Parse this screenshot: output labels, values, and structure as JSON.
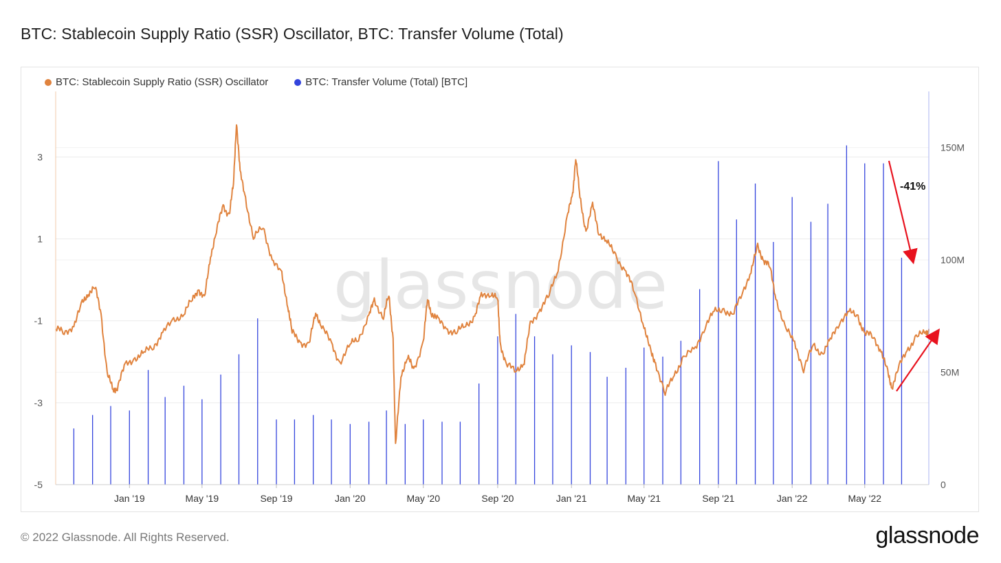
{
  "title": "BTC: Stablecoin Supply Ratio (SSR) Oscillator, BTC: Transfer Volume (Total)",
  "legend": {
    "series1": "BTC: Stablecoin Supply Ratio (SSR) Oscillator",
    "series2": "BTC: Transfer Volume (Total) [BTC]"
  },
  "footer": "© 2022 Glassnode. All Rights Reserved.",
  "logo": "glassnode",
  "watermark": "glassnode",
  "colors": {
    "ssr": "#e0833e",
    "volume": "#3344dd",
    "arrow": "#e8121e",
    "grid": "#ececec"
  },
  "chart_data": {
    "type": "line+bar",
    "x_ticks": [
      "Jan '19",
      "May '19",
      "Sep '19",
      "Jan '20",
      "May '20",
      "Sep '20",
      "Jan '21",
      "May '21",
      "Sep '21",
      "Jan '22",
      "May '22"
    ],
    "x_range": [
      "2018-09-01",
      "2022-08-15"
    ],
    "y_left": {
      "ticks": [
        "3",
        "1",
        "-1",
        "-3",
        "-5"
      ],
      "range": [
        -5,
        4.6
      ]
    },
    "y_right": {
      "ticks": [
        "150M",
        "100M",
        "50M",
        "0"
      ],
      "range": [
        0,
        175000000
      ]
    },
    "annotation": "-41%",
    "series": [
      {
        "name": "BTC: Stablecoin Supply Ratio (SSR) Oscillator",
        "kind": "line",
        "points": [
          [
            "2018-09-01",
            -1.2
          ],
          [
            "2018-09-15",
            -1.3
          ],
          [
            "2018-10-01",
            -1.1
          ],
          [
            "2018-10-15",
            -0.6
          ],
          [
            "2018-10-25",
            -0.3
          ],
          [
            "2018-11-05",
            -0.2
          ],
          [
            "2018-11-15",
            -0.8
          ],
          [
            "2018-11-25",
            -2.3
          ],
          [
            "2018-12-05",
            -2.7
          ],
          [
            "2018-12-12",
            -2.6
          ],
          [
            "2018-12-25",
            -2.1
          ],
          [
            "2019-01-10",
            -1.9
          ],
          [
            "2019-01-25",
            -1.8
          ],
          [
            "2019-02-10",
            -1.6
          ],
          [
            "2019-02-25",
            -1.3
          ],
          [
            "2019-03-15",
            -1.0
          ],
          [
            "2019-04-01",
            -0.8
          ],
          [
            "2019-04-15",
            -0.5
          ],
          [
            "2019-04-25",
            -0.2
          ],
          [
            "2019-05-05",
            -0.5
          ],
          [
            "2019-05-15",
            0.6
          ],
          [
            "2019-05-25",
            1.2
          ],
          [
            "2019-06-05",
            1.8
          ],
          [
            "2019-06-15",
            1.6
          ],
          [
            "2019-06-22",
            2.3
          ],
          [
            "2019-06-27",
            3.9
          ],
          [
            "2019-07-03",
            2.6
          ],
          [
            "2019-07-12",
            2.0
          ],
          [
            "2019-07-25",
            1.0
          ],
          [
            "2019-08-10",
            1.3
          ],
          [
            "2019-08-25",
            0.5
          ],
          [
            "2019-09-10",
            0.1
          ],
          [
            "2019-09-20",
            -0.6
          ],
          [
            "2019-09-27",
            -1.3
          ],
          [
            "2019-10-10",
            -1.5
          ],
          [
            "2019-10-25",
            -1.6
          ],
          [
            "2019-11-05",
            -0.8
          ],
          [
            "2019-11-15",
            -1.1
          ],
          [
            "2019-12-01",
            -1.6
          ],
          [
            "2019-12-15",
            -2.0
          ],
          [
            "2020-01-01",
            -1.6
          ],
          [
            "2020-01-15",
            -1.4
          ],
          [
            "2020-02-01",
            -0.9
          ],
          [
            "2020-02-10",
            -0.5
          ],
          [
            "2020-02-25",
            -0.9
          ],
          [
            "2020-03-05",
            -0.4
          ],
          [
            "2020-03-12",
            -1.4
          ],
          [
            "2020-03-16",
            -4.1
          ],
          [
            "2020-03-25",
            -2.3
          ],
          [
            "2020-04-05",
            -1.9
          ],
          [
            "2020-04-15",
            -2.2
          ],
          [
            "2020-05-01",
            -1.5
          ],
          [
            "2020-05-08",
            -0.5
          ],
          [
            "2020-05-15",
            -0.8
          ],
          [
            "2020-05-25",
            -1.0
          ],
          [
            "2020-06-10",
            -1.2
          ],
          [
            "2020-06-25",
            -1.3
          ],
          [
            "2020-07-10",
            -1.1
          ],
          [
            "2020-07-25",
            -0.9
          ],
          [
            "2020-08-05",
            -0.4
          ],
          [
            "2020-08-20",
            -0.3
          ],
          [
            "2020-09-01",
            -0.5
          ],
          [
            "2020-09-05",
            -1.5
          ],
          [
            "2020-09-15",
            -2.1
          ],
          [
            "2020-10-01",
            -2.2
          ],
          [
            "2020-10-15",
            -2.0
          ],
          [
            "2020-10-25",
            -1.1
          ],
          [
            "2020-11-10",
            -0.7
          ],
          [
            "2020-11-25",
            -0.4
          ],
          [
            "2020-12-10",
            0.3
          ],
          [
            "2020-12-25",
            1.5
          ],
          [
            "2021-01-03",
            2.1
          ],
          [
            "2021-01-08",
            3.0
          ],
          [
            "2021-01-15",
            2.0
          ],
          [
            "2021-01-25",
            1.2
          ],
          [
            "2021-02-05",
            1.8
          ],
          [
            "2021-02-15",
            1.2
          ],
          [
            "2021-03-01",
            0.9
          ],
          [
            "2021-03-15",
            0.6
          ],
          [
            "2021-04-01",
            0.2
          ],
          [
            "2021-04-15",
            -0.3
          ],
          [
            "2021-05-01",
            -1.1
          ],
          [
            "2021-05-12",
            -1.8
          ],
          [
            "2021-05-20",
            -2.0
          ],
          [
            "2021-06-05",
            -2.8
          ],
          [
            "2021-06-20",
            -2.3
          ],
          [
            "2021-07-05",
            -1.9
          ],
          [
            "2021-07-25",
            -1.7
          ],
          [
            "2021-08-10",
            -1.1
          ],
          [
            "2021-08-25",
            -0.8
          ],
          [
            "2021-09-10",
            -0.7
          ],
          [
            "2021-09-25",
            -0.9
          ],
          [
            "2021-10-10",
            -0.3
          ],
          [
            "2021-10-25",
            0.2
          ],
          [
            "2021-11-05",
            0.8
          ],
          [
            "2021-11-15",
            0.5
          ],
          [
            "2021-11-25",
            0.3
          ],
          [
            "2021-12-05",
            -0.4
          ],
          [
            "2021-12-20",
            -1.2
          ],
          [
            "2022-01-05",
            -1.5
          ],
          [
            "2022-01-20",
            -2.2
          ],
          [
            "2022-02-05",
            -1.6
          ],
          [
            "2022-02-20",
            -1.8
          ],
          [
            "2022-03-05",
            -1.5
          ],
          [
            "2022-03-20",
            -1.0
          ],
          [
            "2022-04-05",
            -0.8
          ],
          [
            "2022-04-20",
            -0.9
          ],
          [
            "2022-05-01",
            -1.3
          ],
          [
            "2022-05-15",
            -1.4
          ],
          [
            "2022-05-28",
            -1.7
          ],
          [
            "2022-06-08",
            -2.3
          ],
          [
            "2022-06-15",
            -2.6
          ],
          [
            "2022-06-25",
            -2.2
          ],
          [
            "2022-07-10",
            -1.7
          ],
          [
            "2022-07-25",
            -1.4
          ],
          [
            "2022-08-10",
            -1.3
          ],
          [
            "2022-08-15",
            -1.2
          ]
        ]
      },
      {
        "name": "BTC: Transfer Volume (Total) [BTC]",
        "kind": "bar",
        "points": [
          [
            "2018-10-01",
            25000000
          ],
          [
            "2018-11-01",
            31000000
          ],
          [
            "2018-12-01",
            35000000
          ],
          [
            "2019-01-01",
            33000000
          ],
          [
            "2019-02-01",
            51000000
          ],
          [
            "2019-03-01",
            39000000
          ],
          [
            "2019-04-01",
            44000000
          ],
          [
            "2019-05-01",
            38000000
          ],
          [
            "2019-06-01",
            49000000
          ],
          [
            "2019-07-01",
            58000000
          ],
          [
            "2019-08-01",
            74000000
          ],
          [
            "2019-09-01",
            29000000
          ],
          [
            "2019-10-01",
            29000000
          ],
          [
            "2019-11-01",
            31000000
          ],
          [
            "2019-12-01",
            29000000
          ],
          [
            "2020-01-01",
            27000000
          ],
          [
            "2020-02-01",
            28000000
          ],
          [
            "2020-03-01",
            33000000
          ],
          [
            "2020-04-01",
            27000000
          ],
          [
            "2020-05-01",
            29000000
          ],
          [
            "2020-06-01",
            28000000
          ],
          [
            "2020-07-01",
            28000000
          ],
          [
            "2020-08-01",
            45000000
          ],
          [
            "2020-09-01",
            66000000
          ],
          [
            "2020-10-01",
            76000000
          ],
          [
            "2020-11-01",
            66000000
          ],
          [
            "2020-12-01",
            58000000
          ],
          [
            "2021-01-01",
            62000000
          ],
          [
            "2021-02-01",
            59000000
          ],
          [
            "2021-03-01",
            48000000
          ],
          [
            "2021-04-01",
            52000000
          ],
          [
            "2021-05-01",
            61000000
          ],
          [
            "2021-06-01",
            57000000
          ],
          [
            "2021-07-01",
            64000000
          ],
          [
            "2021-08-01",
            87000000
          ],
          [
            "2021-09-01",
            144000000
          ],
          [
            "2021-10-01",
            118000000
          ],
          [
            "2021-11-01",
            134000000
          ],
          [
            "2021-12-01",
            108000000
          ],
          [
            "2022-01-01",
            128000000
          ],
          [
            "2022-02-01",
            117000000
          ],
          [
            "2022-03-01",
            125000000
          ],
          [
            "2022-04-01",
            151000000
          ],
          [
            "2022-05-01",
            143000000
          ],
          [
            "2022-06-01",
            143000000
          ],
          [
            "2022-07-01",
            101000000
          ]
        ]
      }
    ]
  }
}
